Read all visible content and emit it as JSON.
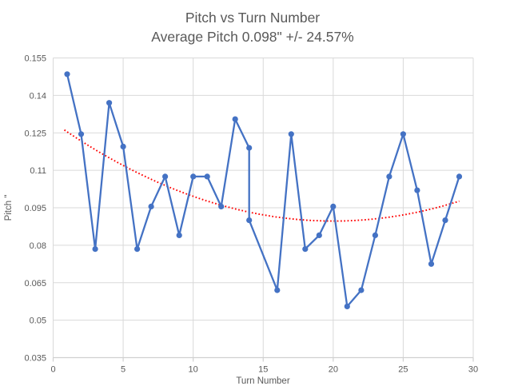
{
  "colors": {
    "series": "#4472C4",
    "trendline": "#FF0000",
    "grid": "#D9D9D9",
    "axis_line": "#D0D0D0",
    "text": "#595959",
    "background": "#FFFFFF"
  },
  "chart_data": {
    "type": "line",
    "title": "Pitch vs Turn Number",
    "subtitle": "Average Pitch 0.098\" +/- 24.57%",
    "xlabel": "Turn Number",
    "ylabel": "Pitch \"",
    "xlim": [
      0,
      30
    ],
    "ylim": [
      0.035,
      0.155
    ],
    "x_ticks": [
      0,
      5,
      10,
      15,
      20,
      25,
      30
    ],
    "y_ticks": [
      0.035,
      0.05,
      0.065,
      0.08,
      0.095,
      0.11,
      0.125,
      0.14,
      0.155
    ],
    "y_tick_labels": [
      "0.035",
      "0.05",
      "0.065",
      "0.08",
      "0.095",
      "0.11",
      "0.125",
      "0.14",
      "0.155"
    ],
    "grid": true,
    "legend": "none",
    "marker": "circle",
    "x": [
      1,
      2,
      3,
      4,
      5,
      6,
      7,
      8,
      9,
      10,
      11,
      12,
      13,
      14,
      14,
      16,
      17,
      18,
      19,
      20,
      21,
      22,
      23,
      24,
      25,
      26,
      27,
      28,
      29
    ],
    "values": [
      0.1485,
      0.1245,
      0.0785,
      0.137,
      0.1195,
      0.0785,
      0.0955,
      0.1075,
      0.084,
      0.1075,
      0.1075,
      0.0955,
      0.1305,
      0.119,
      0.09,
      0.062,
      0.1245,
      0.0785,
      0.084,
      0.0955,
      0.0555,
      0.062,
      0.084,
      0.1075,
      0.1245,
      0.102,
      0.0725,
      0.09,
      0.1075
    ],
    "trendline": {
      "type": "polynomial",
      "order": 2,
      "coefficients": {
        "a": 9.88e-05,
        "b": -0.0039545,
        "c": 0.12926
      },
      "t_range": [
        0.8,
        29.1
      ],
      "style": "dotted"
    }
  }
}
